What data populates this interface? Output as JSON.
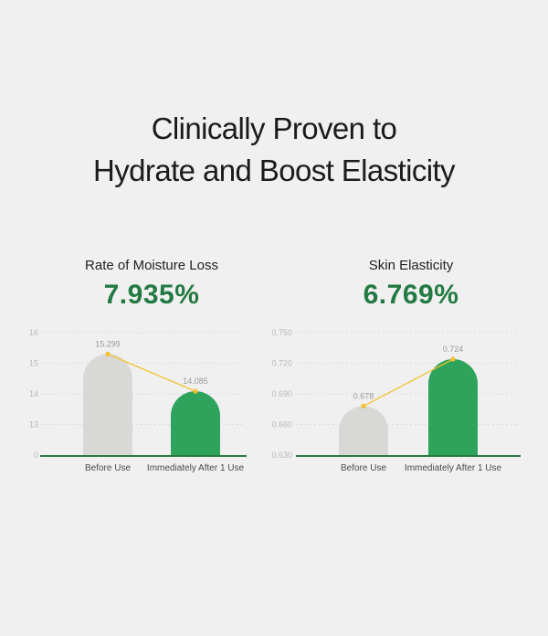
{
  "headline": {
    "line1": "Clinically Proven to",
    "line2": "Hydrate and Boost Elasticity"
  },
  "colors": {
    "before_bar": "#d8d8d6",
    "after_bar": "#2ea35c",
    "connector": "#f2c230",
    "value_text": "#237a42",
    "axis": "#2a7a3f"
  },
  "chart_data": [
    {
      "type": "bar",
      "title": "Rate of Moisture Loss",
      "headline_value": "7.935%",
      "categories": [
        "Before Use",
        "Immediately After 1 Use"
      ],
      "values": [
        15.299,
        14.085
      ],
      "value_labels": [
        "15.299",
        "14.085"
      ],
      "yticks": [
        0,
        13,
        14,
        15,
        16
      ],
      "ytick_labels": [
        "0",
        "13",
        "14",
        "15",
        "16"
      ],
      "grid": true,
      "connector_line": true
    },
    {
      "type": "bar",
      "title": "Skin Elasticity",
      "headline_value": "6.769%",
      "categories": [
        "Before Use",
        "Immediately After 1 Use"
      ],
      "values": [
        0.678,
        0.724
      ],
      "value_labels": [
        "0.678",
        "0.724"
      ],
      "yticks": [
        0.63,
        0.66,
        0.69,
        0.72,
        0.75
      ],
      "ytick_labels": [
        "0.630",
        "0.660",
        "0.690",
        "0.720",
        "0.750"
      ],
      "ylim": [
        0.63,
        0.75
      ],
      "grid": true,
      "connector_line": true
    }
  ]
}
